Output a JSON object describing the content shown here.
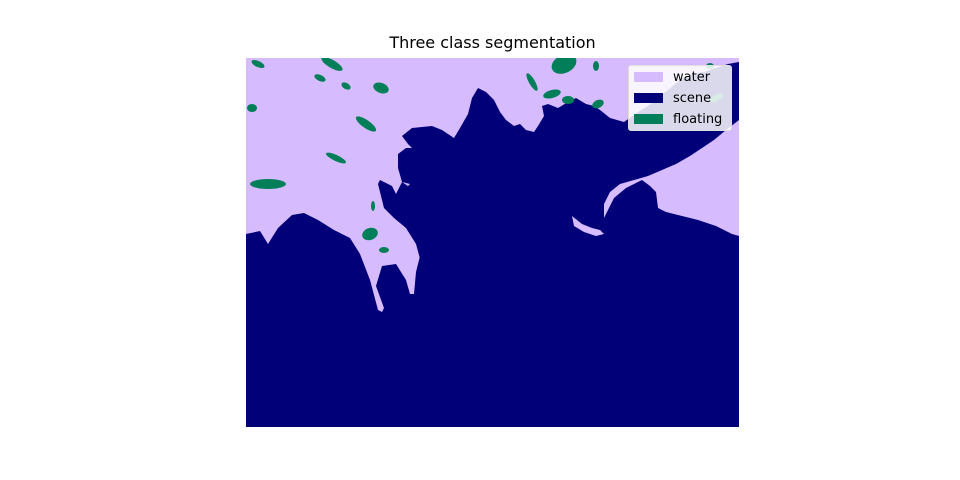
{
  "chart_data": {
    "type": "heatmap",
    "title": "Three class segmentation",
    "xlabel": "",
    "ylabel": "",
    "grid": false,
    "axes_visible": false,
    "legend": {
      "placement": "top-right",
      "entries": [
        {
          "label": "water",
          "color": "#d6bbff"
        },
        {
          "label": "scene",
          "color": "#010078"
        },
        {
          "label": "floating",
          "color": "#027f59"
        }
      ]
    },
    "classes": [
      "water",
      "scene",
      "floating"
    ]
  }
}
